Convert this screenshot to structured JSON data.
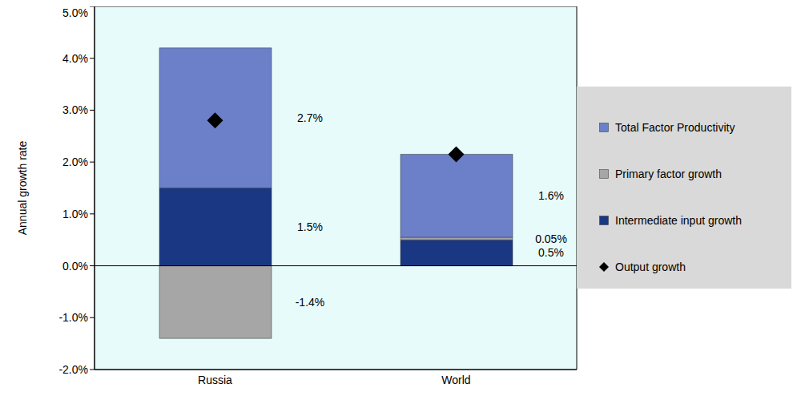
{
  "chart_data": {
    "type": "bar",
    "stacked": true,
    "grid": false,
    "legend": "right",
    "data_labels": true,
    "y_label": "Annual growth rate",
    "categories": [
      "Russia",
      "World"
    ],
    "ylim": [
      -2,
      5
    ],
    "yticks": [
      {
        "value": -2,
        "label": "-2.0%"
      },
      {
        "value": -1,
        "label": "-1.0%"
      },
      {
        "value": 0,
        "label": "0.0%"
      },
      {
        "value": 1,
        "label": "1.0%"
      },
      {
        "value": 2,
        "label": "2.0%"
      },
      {
        "value": 3,
        "label": "3.0%"
      },
      {
        "value": 4,
        "label": "4.0%"
      },
      {
        "value": 5,
        "label": "5.0%"
      }
    ],
    "series": [
      {
        "name": "Total Factor Productivity",
        "type": "bar",
        "color": "#6b80c8",
        "values": [
          2.7,
          1.6
        ],
        "value_labels": [
          "2.7%",
          "1.6%"
        ]
      },
      {
        "name": "Primary factor growth",
        "type": "bar",
        "color": "#a6a6a6",
        "values": [
          -1.4,
          0.05
        ],
        "value_labels": [
          "-1.4%",
          "0.05%"
        ]
      },
      {
        "name": "Intermediate input growth",
        "type": "bar",
        "color": "#1a3783",
        "values": [
          1.5,
          0.5
        ],
        "value_labels": [
          "1.5%",
          "0.5%"
        ]
      },
      {
        "name": "Output growth",
        "type": "scatter",
        "marker": "diamond",
        "color": "#000000",
        "values": [
          2.8,
          2.15
        ]
      }
    ]
  }
}
